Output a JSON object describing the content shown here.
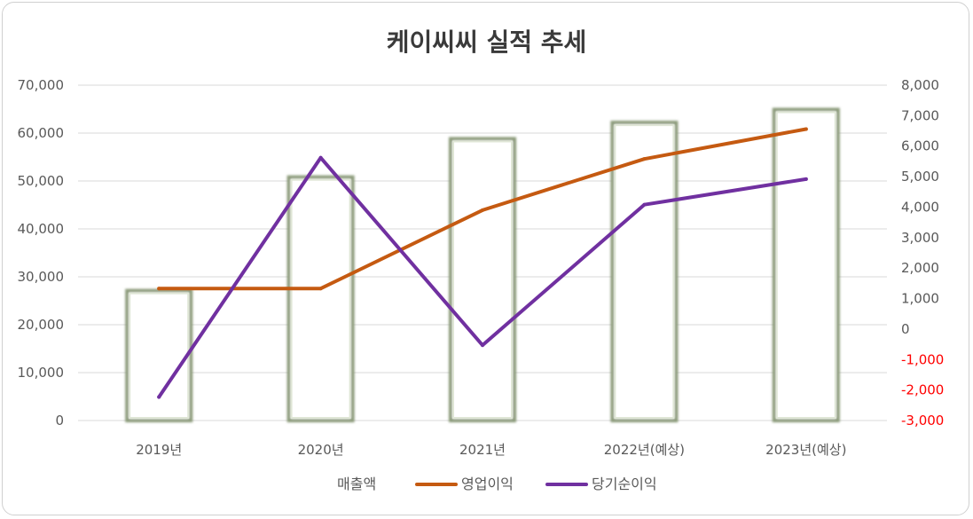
{
  "chart_data": {
    "type": "bar",
    "title": "케이씨씨 실적 추세",
    "categories": [
      "2019년",
      "2020년",
      "2021년",
      "2022년(예상)",
      "2023년(예상)"
    ],
    "y_left": {
      "min": 0,
      "max": 70000,
      "step": 10000,
      "ticks": [
        "0",
        "10,000",
        "20,000",
        "30,000",
        "40,000",
        "50,000",
        "60,000",
        "70,000"
      ]
    },
    "y_right": {
      "min": -3000,
      "max": 8000,
      "step": 1000,
      "ticks": [
        "-3,000",
        "-2,000",
        "-1,000",
        "0",
        "1,000",
        "2,000",
        "3,000",
        "4,000",
        "5,000",
        "6,000",
        "7,000",
        "8,000"
      ]
    },
    "grid": true,
    "legend_position": "bottom",
    "series": [
      {
        "name": "매출액",
        "type": "bar",
        "axis": "left",
        "color": "#c5d1b4",
        "values": [
          27100,
          50800,
          58800,
          62200,
          64900
        ]
      },
      {
        "name": "영업이익",
        "type": "line",
        "axis": "right",
        "color": "#c55a11",
        "values": [
          1330,
          1330,
          3900,
          5580,
          6560
        ]
      },
      {
        "name": "당기순이익",
        "type": "line",
        "axis": "right",
        "color": "#7030a0",
        "values": [
          -2230,
          5620,
          -530,
          4080,
          4920
        ]
      }
    ]
  }
}
